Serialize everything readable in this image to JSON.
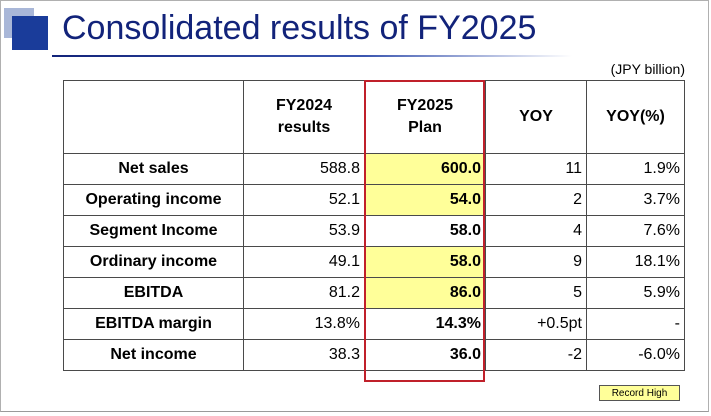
{
  "title": "Consolidated results of FY2025",
  "unit": "(JPY billion)",
  "colors": {
    "title": "#12237a",
    "plan_border": "#c0202a",
    "record_high": "#ffff99"
  },
  "table": {
    "headers": [
      "",
      "FY2024 results",
      "FY2025 Plan",
      "YOY",
      "YOY(%)"
    ],
    "header_lines": {
      "fy2024_line1": "FY2024",
      "fy2024_line2": "results",
      "fy2025_line1": "FY2025",
      "fy2025_line2": "Plan",
      "yoy": "YOY",
      "yoy_pct": "YOY(%)"
    },
    "rows": [
      {
        "label": "Net sales",
        "fy2024": "588.8",
        "fy2025": "600.0",
        "yoy": "11",
        "yoy_pct": "1.9%",
        "record_high": true
      },
      {
        "label": "Operating income",
        "fy2024": "52.1",
        "fy2025": "54.0",
        "yoy": "2",
        "yoy_pct": "3.7%",
        "record_high": true
      },
      {
        "label": "Segment Income",
        "fy2024": "53.9",
        "fy2025": "58.0",
        "yoy": "4",
        "yoy_pct": "7.6%",
        "record_high": false
      },
      {
        "label": "Ordinary income",
        "fy2024": "49.1",
        "fy2025": "58.0",
        "yoy": "9",
        "yoy_pct": "18.1%",
        "record_high": true
      },
      {
        "label": "EBITDA",
        "fy2024": "81.2",
        "fy2025": "86.0",
        "yoy": "5",
        "yoy_pct": "5.9%",
        "record_high": true
      },
      {
        "label": "EBITDA margin",
        "fy2024": "13.8%",
        "fy2025": "14.3%",
        "yoy": "+0.5pt",
        "yoy_pct": "-",
        "record_high": false
      },
      {
        "label": "Net income",
        "fy2024": "38.3",
        "fy2025": "36.0",
        "yoy": "-2",
        "yoy_pct": "-6.0%",
        "record_high": false
      }
    ]
  },
  "legend": {
    "label": "Record High"
  }
}
